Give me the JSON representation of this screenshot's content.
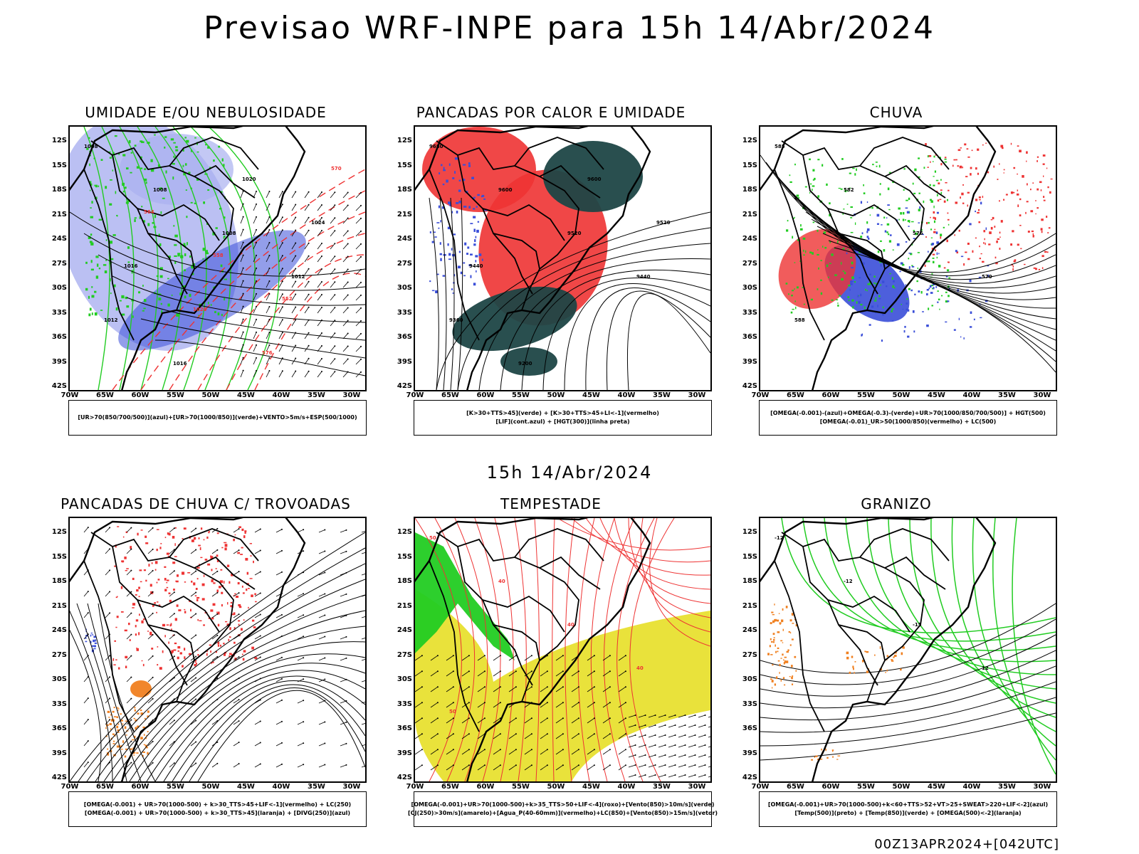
{
  "title": "Previsao WRF-INPE  para 15h 14/Abr/2024",
  "mid_title": "15h 14/Abr/2024",
  "footer": "00Z13APR2024+[042UTC]",
  "lat_labels": [
    "12S",
    "15S",
    "18S",
    "21S",
    "24S",
    "27S",
    "30S",
    "33S",
    "36S",
    "39S",
    "42S"
  ],
  "lon_labels": [
    "70W",
    "65W",
    "60W",
    "55W",
    "50W",
    "45W",
    "40W",
    "35W",
    "30W"
  ],
  "colors": {
    "blue": "#3a4ed8",
    "lightblue": "#aab0f0",
    "green": "#22cc22",
    "red": "#ee3333",
    "darkteal": "#1e4646",
    "yellow": "#e8e030",
    "orange": "#f08020"
  },
  "panels": [
    {
      "id": "umidade",
      "title": "UMIDADE E/OU NEBULOSIDADE",
      "legend": [
        "[UR>70(850/700/500)](azul)+[UR>70(1000/850)](verde)+VENTO>5m/s+ESP(500/1000)"
      ],
      "labels": [
        "1008",
        "1008",
        "1008",
        "1012",
        "1012",
        "1016",
        "1020",
        "1024",
        "1016",
        "1020",
        "576",
        "570",
        "564",
        "558",
        "552"
      ]
    },
    {
      "id": "pancadas-calor",
      "title": "PANCADAS POR CALOR E UMIDADE",
      "legend": [
        "[K>30+TTS>45](verde) + [K>30+TTS>45+LI<-1](vermelho)",
        "[LIF](cont.azul) + [HGT(300)](linha preta)"
      ],
      "labels": [
        "9680",
        "9600",
        "9520",
        "9440",
        "9360",
        "9200",
        "9600",
        "9520",
        "9440"
      ]
    },
    {
      "id": "chuva",
      "title": "CHUVA",
      "legend": [
        "[OMEGA(-0.001)-(azul)+OMEGA(-0.3)-(verde)+UR>70(1000/850/700/500)] + HGT(500)",
        "[OMEGA(-0.01)_UR>50(1000/850)(vermelho) + LC(500)"
      ],
      "labels": [
        "585",
        "582",
        "576",
        "570",
        "588"
      ]
    },
    {
      "id": "trovoadas",
      "title": "PANCADAS DE CHUVA C/ TROVOADAS",
      "legend": [
        "[OMEGA(-0.001) + UR>70(1000-500) + k>30_TTS>45+LIF<-1](vermelho) + LC(250)",
        "[OMEGA(-0.001) + UR>70(1000-500) + k>30_TTS>45](laranja) + [DIVG(250)](azul)"
      ],
      "labels": []
    },
    {
      "id": "tempestade",
      "title": "TEMPESTADE",
      "legend": [
        "[OMEGA(-0.001)+UR>70(1000-500)+k>35_TTS>50+LIF<-4](roxo)+[Vento(850)>10m/s](verde)",
        "[CJ(250)>30m/s](amarelo)+[Agua_P(40-60mm)](vermelho)+LC(850)+[Vento(850)>15m/s](vetor)"
      ],
      "labels": [
        "50",
        "40",
        "40",
        "40",
        "50"
      ]
    },
    {
      "id": "granizo",
      "title": "GRANIZO",
      "legend": [
        "[OMEGA(-0.001)+UR>70(1000-500)+k<60+TTS>52+VT>25+SWEAT>220+LIF<-2](azul)",
        "[Temp(500)](preto) + [Temp(850)](verde) + [OMEGA(500)<-2](laranja)"
      ],
      "labels": [
        "-12",
        "-12",
        "-15",
        "12"
      ]
    }
  ]
}
